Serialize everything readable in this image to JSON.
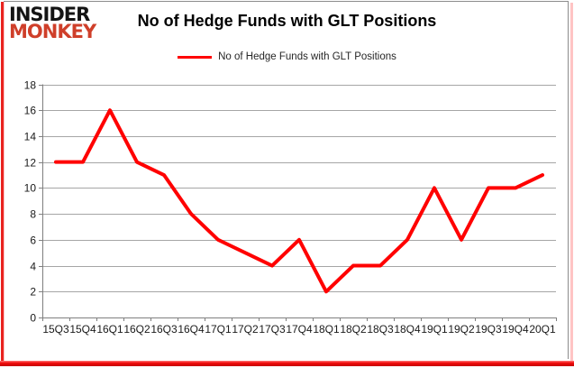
{
  "logo": {
    "line1": "INSIDER",
    "line2": "MONKEY"
  },
  "title": "No of Hedge Funds with GLT Positions",
  "legend": {
    "label": "No of Hedge Funds with GLT Positions"
  },
  "chart_data": {
    "type": "line",
    "title": "No of Hedge Funds with GLT Positions",
    "categories": [
      "15Q3",
      "15Q4",
      "16Q1",
      "16Q2",
      "16Q3",
      "16Q4",
      "17Q1",
      "17Q2",
      "17Q3",
      "17Q4",
      "18Q1",
      "18Q2",
      "18Q3",
      "18Q4",
      "19Q1",
      "19Q2",
      "19Q3",
      "19Q4",
      "20Q1"
    ],
    "series": [
      {
        "name": "No of Hedge Funds with GLT Positions",
        "color": "#ff0000",
        "values": [
          12,
          12,
          16,
          12,
          11,
          8,
          6,
          5,
          4,
          6,
          2,
          4,
          4,
          6,
          10,
          6,
          10,
          10,
          11
        ]
      }
    ],
    "xlabel": "",
    "ylabel": "",
    "ylim": [
      0,
      18
    ],
    "ytick_step": 2,
    "grid": "horizontal",
    "legend_position": "top-center"
  },
  "colors": {
    "line": "#ff0000",
    "logo_red": "#cf3f2a",
    "grid": "#a6a6a6",
    "axis": "#7f7f7f",
    "tick_text": "#1a1a1a",
    "border_red": "#e8231f",
    "border_pink": "#ffc4c4",
    "frame_gray": "#8c8c8c"
  }
}
